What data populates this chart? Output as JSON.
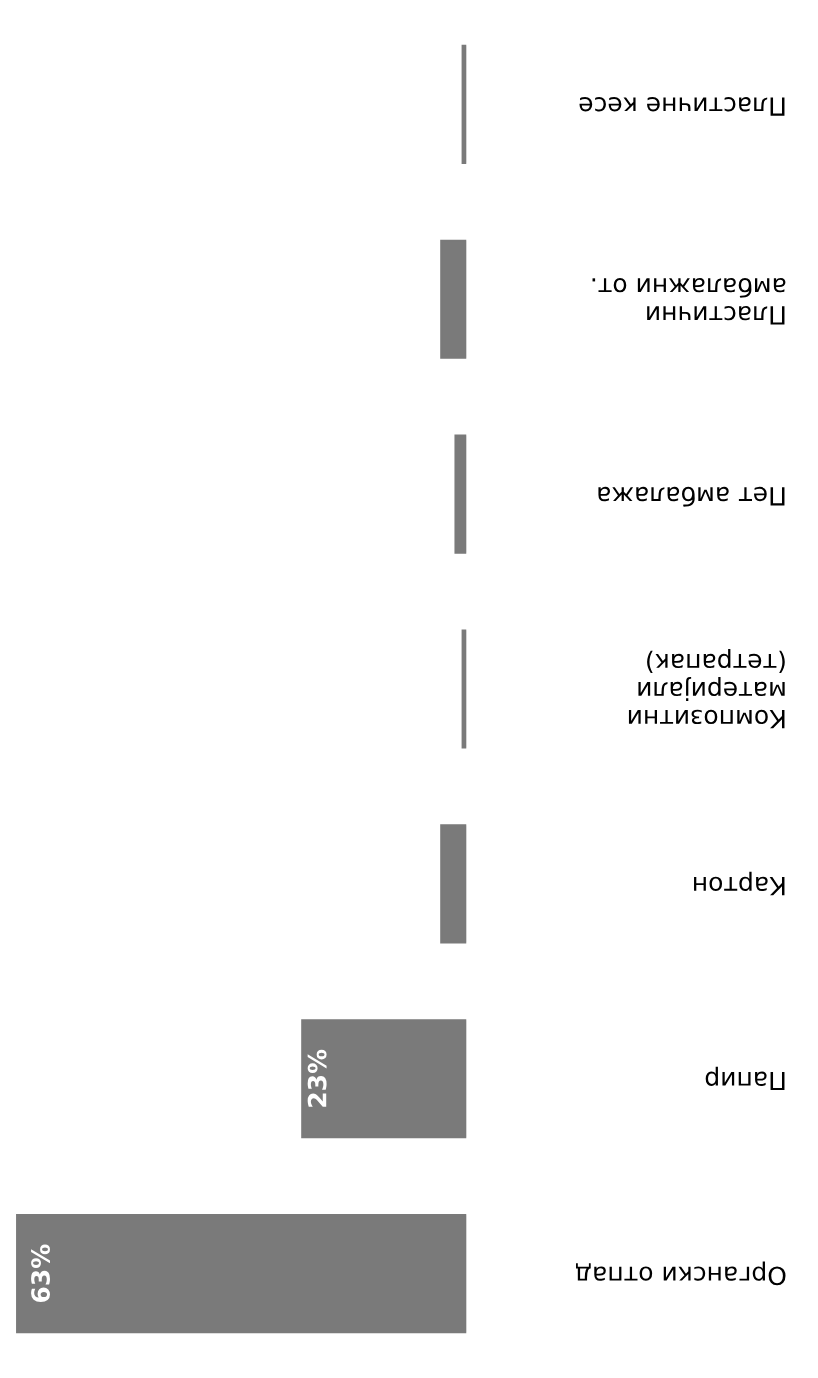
{
  "chart_data": {
    "type": "bar",
    "orientation": "horizontal",
    "categories": [
      "Пластичне кесе",
      "Пластични\nамбалажни от.",
      "Пет амбалажа",
      "Композитни\nматеријали\n(тетрапак)",
      "Картон",
      "Папир",
      "Органски отпад"
    ],
    "values": [
      0.5,
      3.5,
      1.5,
      0.5,
      3.5,
      23,
      63
    ],
    "value_labels": [
      null,
      null,
      null,
      null,
      null,
      "23%",
      "63%"
    ],
    "color": "#7a7a7a"
  }
}
